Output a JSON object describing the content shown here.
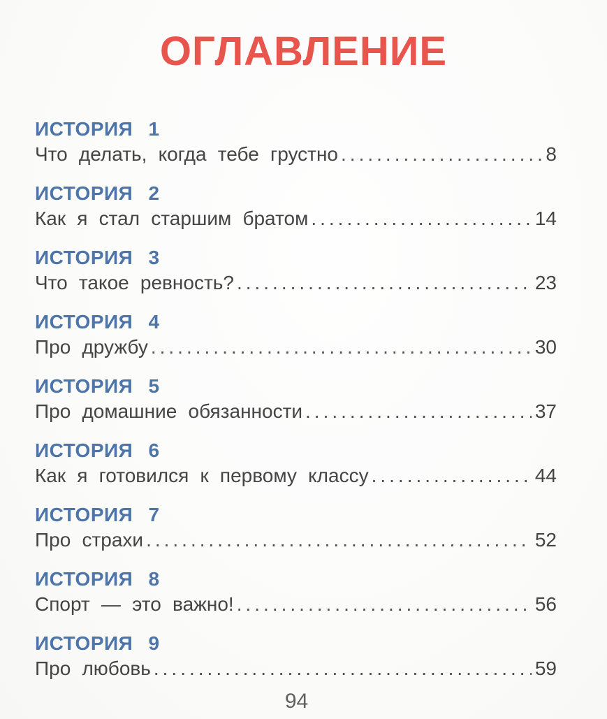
{
  "page": {
    "title": "ОГЛАВЛЕНИЕ",
    "footer_page_number": "94",
    "title_color": "#e8554d",
    "heading_color": "#4d75a9",
    "text_color": "#454545"
  },
  "entries": [
    {
      "heading": "ИСТОРИЯ 1",
      "title": "Что делать, когда тебе грустно",
      "page": "8"
    },
    {
      "heading": "ИСТОРИЯ 2",
      "title": "Как я стал старшим братом",
      "page": "14"
    },
    {
      "heading": "ИСТОРИЯ 3",
      "title": "Что такое ревность?",
      "page": "23"
    },
    {
      "heading": "ИСТОРИЯ 4",
      "title": "Про дружбу",
      "page": "30"
    },
    {
      "heading": "ИСТОРИЯ 5",
      "title": "Про домашние обязанности",
      "page": "37"
    },
    {
      "heading": "ИСТОРИЯ 6",
      "title": "Как я готовился к первому классу",
      "page": "44"
    },
    {
      "heading": "ИСТОРИЯ 7",
      "title": "Про страхи",
      "page": "52"
    },
    {
      "heading": "ИСТОРИЯ 8",
      "title": "Спорт — это важно!",
      "page": "56"
    },
    {
      "heading": "ИСТОРИЯ 9",
      "title": "Про любовь",
      "page": "59"
    }
  ]
}
